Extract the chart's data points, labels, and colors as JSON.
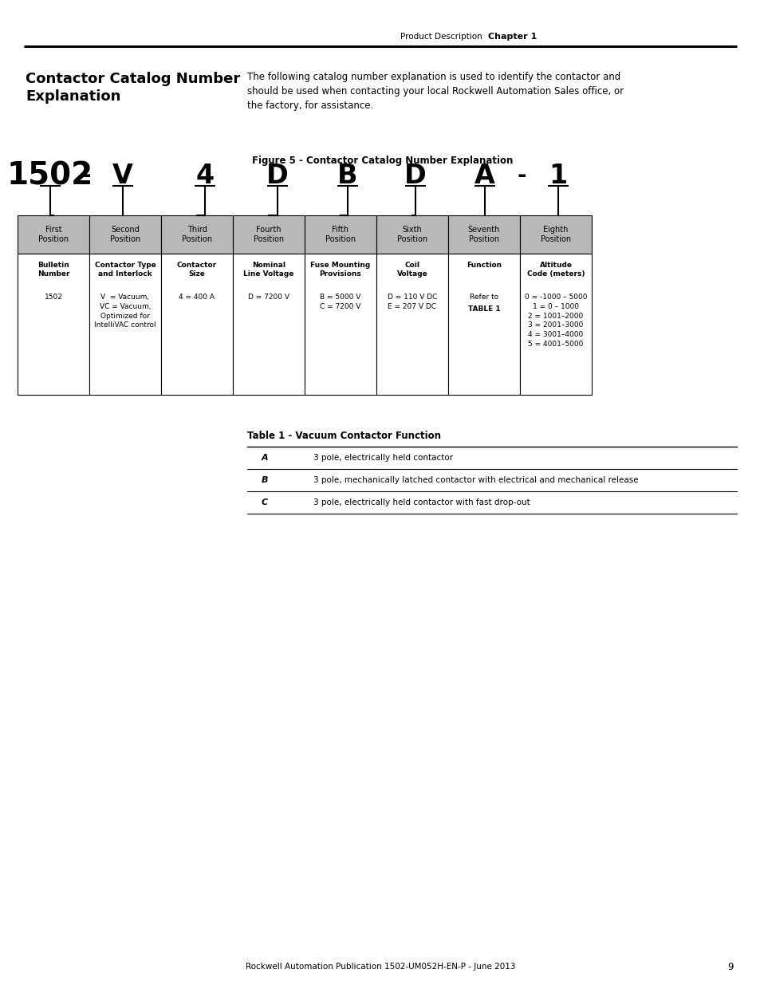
{
  "page_header_left": "Product Description",
  "page_header_right": "Chapter 1",
  "section_title": "Contactor Catalog Number\nExplanation",
  "intro_text": "The following catalog number explanation is used to identify the contactor and\nshould be used when contacting your local Rockwell Automation Sales office, or\nthe factory, for assistance.",
  "figure_title": "Figure 5 - Contactor Catalog Number Explanation",
  "positions": [
    {
      "label": "First\nPosition",
      "title": "Bulletin\nNumber",
      "content": "1502",
      "shaded": true
    },
    {
      "label": "Second\nPosition",
      "title": "Contactor Type\nand Interlock",
      "content": "V  = Vacuum,\nVC = Vacuum,\nOptimized for\nIntelliVAC control",
      "shaded": true
    },
    {
      "label": "Third\nPosition",
      "title": "Contactor\nSize",
      "content": "4 = 400 A",
      "shaded": false
    },
    {
      "label": "Fourth\nPosition",
      "title": "Nominal\nLine Voltage",
      "content": "D = 7200 V",
      "shaded": false
    },
    {
      "label": "Fifth\nPosition",
      "title": "Fuse Mounting\nProvisions",
      "content": "B = 5000 V\nC = 7200 V",
      "shaded": true
    },
    {
      "label": "Sixth\nPosition",
      "title": "Coil\nVoltage",
      "content": "D = 110 V DC\nE = 207 V DC",
      "shaded": true
    },
    {
      "label": "Seventh\nPosition",
      "title": "Function",
      "content": "Refer to\nTABLE 1",
      "content_bold": true,
      "shaded": false
    },
    {
      "label": "Eighth\nPosition",
      "title": "Altitude\nCode (meters)",
      "content": "0 = -1000 – 5000\n1 = 0 – 1000\n2 = 1001–2000\n3 = 2001–3000\n4 = 3001–4000\n5 = 4001–5000",
      "shaded": true
    }
  ],
  "table_title": "Table 1 - Vacuum Contactor Function",
  "table_rows": [
    [
      "A",
      "3 pole, electrically held contactor"
    ],
    [
      "B",
      "3 pole, mechanically latched contactor with electrical and mechanical release"
    ],
    [
      "C",
      "3 pole, electrically held contactor with fast drop-out"
    ]
  ],
  "footer_text": "Rockwell Automation Publication 1502-UM052H-EN-P - June 2013",
  "page_number": "9",
  "bg_color": "#ffffff",
  "shaded_color": "#b8b8b8",
  "unshaded_color": "#ffffff",
  "border_color": "#000000"
}
